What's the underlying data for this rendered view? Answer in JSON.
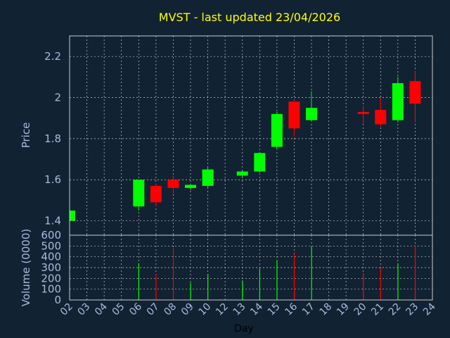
{
  "chart_data": [
    {
      "type": "candlestick",
      "title": "MVST - last updated 23/04/2026",
      "ylabel": "Price",
      "ylim": [
        1.33,
        2.3
      ],
      "yticks": [
        1.4,
        1.6,
        1.8,
        2,
        2.2
      ],
      "ytick_labels": [
        "1.4",
        "1.6",
        "1.8",
        "2",
        "2.2"
      ],
      "grid": true,
      "series": [
        {
          "day": "02",
          "open": 1.4,
          "high": 1.45,
          "low": 1.4,
          "close": 1.45
        },
        {
          "day": "06",
          "open": 1.47,
          "high": 1.6,
          "low": 1.45,
          "close": 1.6
        },
        {
          "day": "07",
          "open": 1.57,
          "high": 1.58,
          "low": 1.47,
          "close": 1.49
        },
        {
          "day": "08",
          "open": 1.6,
          "high": 1.62,
          "low": 1.53,
          "close": 1.56
        },
        {
          "day": "09",
          "open": 1.56,
          "high": 1.58,
          "low": 1.55,
          "close": 1.575
        },
        {
          "day": "10",
          "open": 1.57,
          "high": 1.66,
          "low": 1.56,
          "close": 1.65
        },
        {
          "day": "13",
          "open": 1.62,
          "high": 1.645,
          "low": 1.615,
          "close": 1.64
        },
        {
          "day": "14",
          "open": 1.64,
          "high": 1.735,
          "low": 1.635,
          "close": 1.73
        },
        {
          "day": "15",
          "open": 1.76,
          "high": 1.93,
          "low": 1.75,
          "close": 1.92
        },
        {
          "day": "16",
          "open": 1.98,
          "high": 1.99,
          "low": 1.81,
          "close": 1.85
        },
        {
          "day": "17",
          "open": 1.89,
          "high": 2.03,
          "low": 1.885,
          "close": 1.95
        },
        {
          "day": "20",
          "open": 1.93,
          "high": 1.96,
          "low": 1.87,
          "close": 1.92
        },
        {
          "day": "21",
          "open": 1.94,
          "high": 2.0,
          "low": 1.86,
          "close": 1.87
        },
        {
          "day": "22",
          "open": 1.89,
          "high": 2.1,
          "low": 1.88,
          "close": 2.07
        },
        {
          "day": "23",
          "open": 2.08,
          "high": 2.13,
          "low": 1.88,
          "close": 1.97
        }
      ]
    },
    {
      "type": "bar",
      "xlabel": "Day",
      "ylabel": "Volume (0000)",
      "ylim": [
        0,
        600
      ],
      "yticks": [
        0,
        100,
        200,
        300,
        400,
        500,
        600
      ],
      "ytick_labels": [
        "0",
        "100",
        "200",
        "300",
        "400",
        "500",
        "600"
      ],
      "categories": [
        "02",
        "03",
        "04",
        "05",
        "06",
        "07",
        "08",
        "09",
        "10",
        "12",
        "13",
        "14",
        "15",
        "16",
        "17",
        "18",
        "19",
        "20",
        "21",
        "22",
        "23",
        "24"
      ],
      "volumes": [
        {
          "day": "06",
          "value": 340
        },
        {
          "day": "07",
          "value": 240
        },
        {
          "day": "08",
          "value": 480
        },
        {
          "day": "09",
          "value": 160
        },
        {
          "day": "10",
          "value": 240
        },
        {
          "day": "13",
          "value": 180
        },
        {
          "day": "14",
          "value": 290
        },
        {
          "day": "15",
          "value": 370
        },
        {
          "day": "16",
          "value": 430
        },
        {
          "day": "17",
          "value": 500
        },
        {
          "day": "20",
          "value": 250
        },
        {
          "day": "21",
          "value": 300
        },
        {
          "day": "22",
          "value": 340
        },
        {
          "day": "23",
          "value": 510
        }
      ]
    }
  ],
  "colors": {
    "background": "#112233",
    "up": "#00ff00",
    "down": "#ff0000",
    "title": "#ffff00",
    "text": "#aabbdd",
    "grid": "#cccccc"
  }
}
